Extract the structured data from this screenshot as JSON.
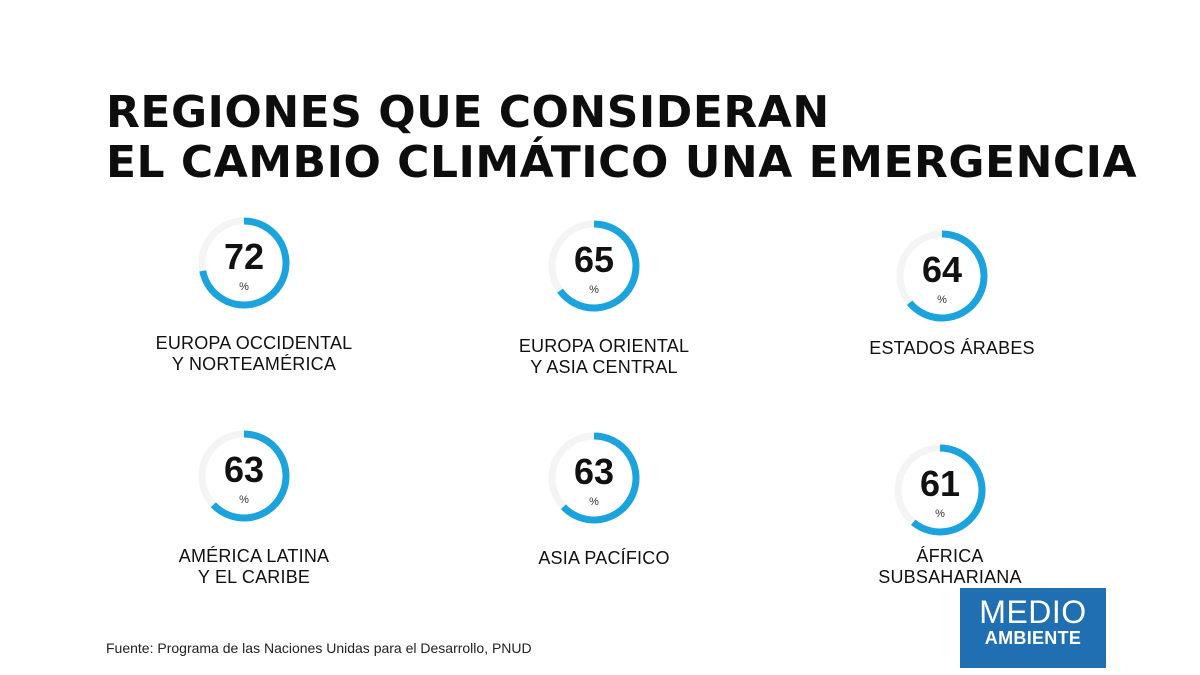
{
  "title": {
    "line1": "REGIONES QUE CONSIDERAN",
    "line2": "EL CAMBIO CLIMÁTICO UNA EMERGENCIA"
  },
  "chart_data": {
    "type": "donut",
    "unit": "%",
    "items": [
      {
        "value": 72,
        "label_lines": [
          "EUROPA OCCIDENTAL",
          "Y NORTEAMÉRICA"
        ]
      },
      {
        "value": 65,
        "label_lines": [
          "EUROPA ORIENTAL",
          "Y ASIA CENTRAL"
        ]
      },
      {
        "value": 64,
        "label_lines": [
          "ESTADOS ÁRABES"
        ]
      },
      {
        "value": 63,
        "label_lines": [
          "AMÉRICA LATINA",
          "Y EL CARIBE"
        ]
      },
      {
        "value": 63,
        "label_lines": [
          "ASIA PACÍFICO"
        ]
      },
      {
        "value": 61,
        "label_lines": [
          "ÁFRICA",
          "SUBSAHARIANA"
        ]
      }
    ],
    "colors": {
      "ring": "#1aa3dc",
      "track": "#f4f4f4"
    }
  },
  "source": "Fuente: Programa de las Naciones Unidas para el Desarrollo, PNUD",
  "brand": {
    "line1": "MEDIO",
    "line2": "AMBIENTE",
    "color": "#1f6fb2"
  }
}
